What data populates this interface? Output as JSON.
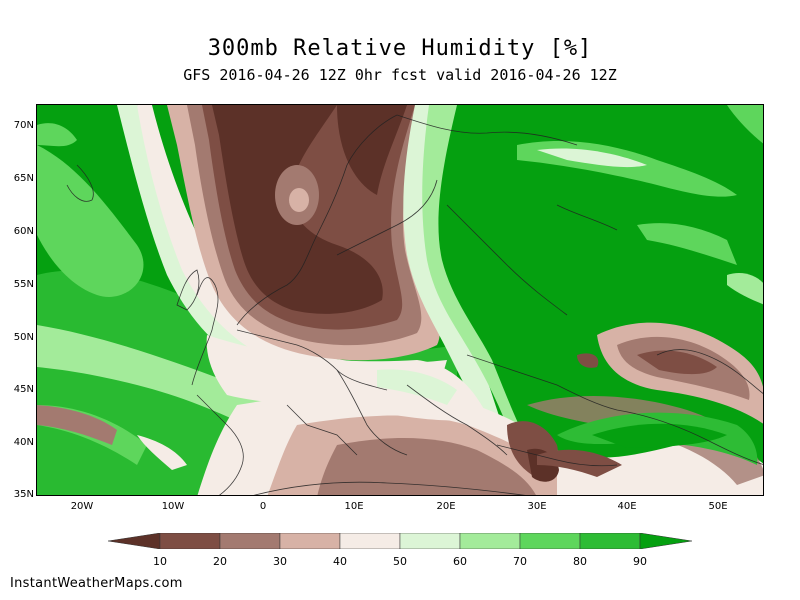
{
  "header": {
    "title": "300mb Relative Humidity [%]",
    "subtitle": "GFS 2016-04-26 12Z 0hr fcst valid 2016-04-26 12Z"
  },
  "map": {
    "lat_labels": [
      "70N",
      "65N",
      "60N",
      "55N",
      "50N",
      "45N",
      "40N",
      "35N"
    ],
    "lon_labels": [
      "20W",
      "10W",
      "0",
      "10E",
      "20E",
      "30E",
      "40E",
      "50E"
    ],
    "lat_range": [
      35,
      72
    ],
    "lon_range": [
      -25,
      55
    ]
  },
  "colorbar": {
    "levels": [
      "10",
      "20",
      "30",
      "40",
      "50",
      "60",
      "70",
      "80",
      "90"
    ],
    "colors": [
      "#5c3128",
      "#7e4e44",
      "#a37a70",
      "#d7b2a6",
      "#f5ece6",
      "#dcf5d6",
      "#a3eb9a",
      "#5ed65c",
      "#2ebc35",
      "#05a010"
    ]
  },
  "footer": {
    "credit": "InstantWeatherMaps.com"
  }
}
